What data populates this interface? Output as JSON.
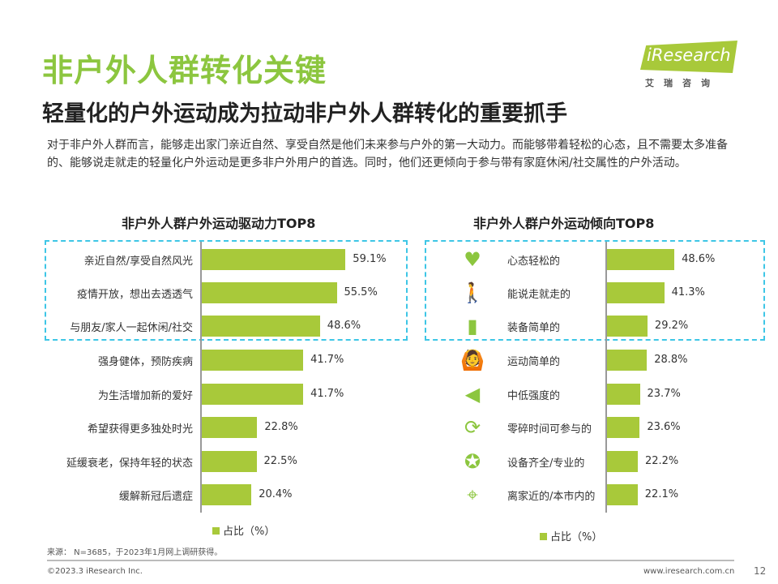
{
  "header": {
    "title": "非户外人群转化关键",
    "subtitle": "轻量化的户外运动成为拉动非户外人群转化的重要抓手",
    "logo_text": "iResearch",
    "logo_cn": "艾瑞咨询"
  },
  "intro": "对于非户外人群而言，能够走出家门亲近自然、享受自然是他们未来参与户外的第一大动力。而能够带着轻松的心态，且不需要太多准备的、能够说走就走的轻量化户外运动是更多非户外用户的首选。同时，他们还更倾向于参与带有家庭休闲/社交属性的户外活动。",
  "colors": {
    "accent": "#8cc63f",
    "bar": "#a8c93a",
    "highlight_box": "#3ec6e6"
  },
  "chart_data": [
    {
      "type": "bar",
      "orientation": "horizontal",
      "title": "非户外人群户外运动驱动力TOP8",
      "legend": "占比（%）",
      "unit": "%",
      "categories": [
        "亲近自然/享受自然风光",
        "疫情开放，想出去透透气",
        "与朋友/家人一起休闲/社交",
        "强身健体，预防疾病",
        "为生活增加新的爱好",
        "希望获得更多独处时光",
        "延缓衰老，保持年轻的状态",
        "缓解新冠后遗症"
      ],
      "values": [
        59.1,
        55.5,
        48.6,
        41.7,
        41.7,
        22.8,
        22.5,
        20.4
      ],
      "highlighted_top": 3
    },
    {
      "type": "bar",
      "orientation": "horizontal",
      "title": "非户外人群户外运动倾向TOP8",
      "legend": "占比（%）",
      "unit": "%",
      "categories": [
        "心态轻松的",
        "能说走就走的",
        "装备简单的",
        "运动简单的",
        "中低强度的",
        "零碎时间可参与的",
        "设备齐全/专业的",
        "离家近的/本市内的"
      ],
      "icons": [
        "heart-icon",
        "hiker-icon",
        "bag-icon",
        "stretching-person-icon",
        "sound-icon",
        "24h-clock-icon",
        "award-badge-icon",
        "location-pin-icon"
      ],
      "values": [
        48.6,
        41.3,
        29.2,
        28.8,
        23.7,
        23.6,
        22.2,
        22.1
      ],
      "highlighted_top": 3
    }
  ],
  "footer": {
    "source": "来源： N=3685，于2023年1月网上调研获得。",
    "copyright": "©2023.3 iResearch Inc.",
    "website": "www.iresearch.com.cn",
    "page": "12"
  }
}
